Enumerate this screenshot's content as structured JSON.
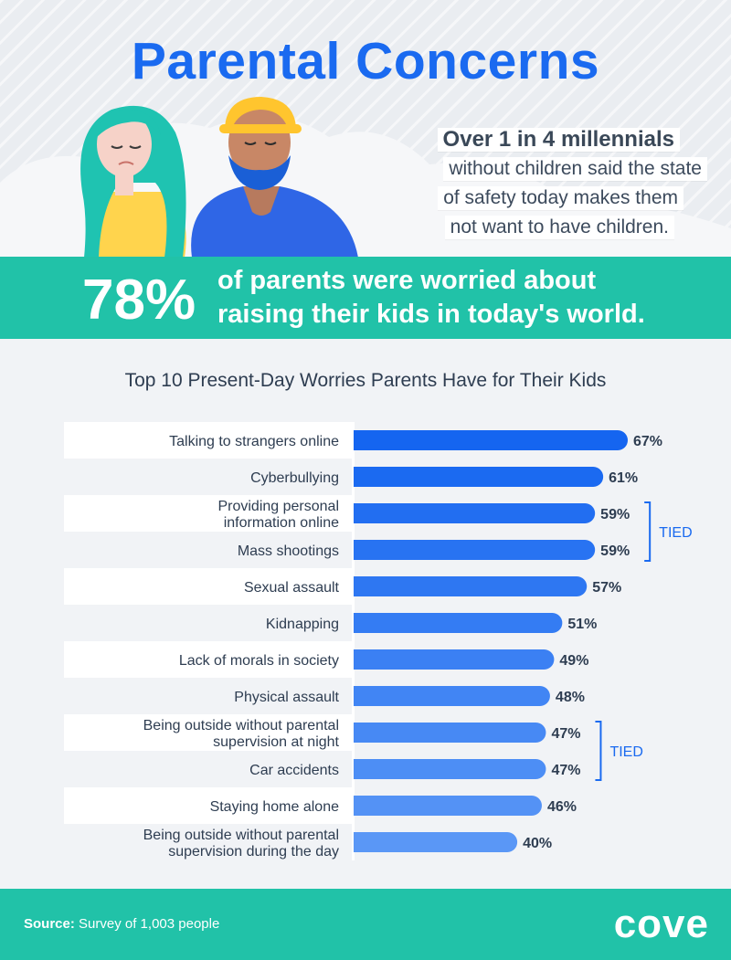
{
  "header": {
    "title": "Parental Concerns",
    "stat_headline": "Over 1 in 4 millennials",
    "stat_lines": [
      "without children said the state",
      "of safety today makes them",
      "not want to have children."
    ]
  },
  "banner": {
    "percent": "78%",
    "line1": "of parents were worried about",
    "line2": "raising their kids in today's world."
  },
  "colors": {
    "title_blue": "#1a6af0",
    "teal": "#21c2a8",
    "bar_dark": "#1565f0",
    "bar_light": "#5a97f6"
  },
  "chart_data": {
    "type": "bar",
    "orientation": "horizontal",
    "title": "Top 10 Present-Day Worries Parents Have for Their Kids",
    "categories": [
      [
        "Talking to strangers online"
      ],
      [
        "Cyberbullying"
      ],
      [
        "Providing personal",
        "information online"
      ],
      [
        "Mass shootings"
      ],
      [
        "Sexual assault"
      ],
      [
        "Kidnapping"
      ],
      [
        "Lack of morals in society"
      ],
      [
        "Physical assault"
      ],
      [
        "Being outside without parental",
        "supervision at night"
      ],
      [
        "Car accidents"
      ],
      [
        "Staying home alone"
      ],
      [
        "Being outside without parental",
        "supervision during the day"
      ]
    ],
    "values": [
      67,
      61,
      59,
      59,
      57,
      51,
      49,
      48,
      47,
      47,
      46,
      40
    ],
    "value_labels": [
      "67%",
      "61%",
      "59%",
      "59%",
      "57%",
      "51%",
      "49%",
      "48%",
      "47%",
      "47%",
      "46%",
      "40%"
    ],
    "xlim": [
      0,
      67
    ],
    "annotations": [
      {
        "text": "TIED",
        "rows": [
          2,
          3
        ]
      },
      {
        "text": "TIED",
        "rows": [
          8,
          9
        ]
      }
    ]
  },
  "footer": {
    "source_label": "Source:",
    "source_text": "Survey of 1,003 people",
    "logo": "cove"
  }
}
